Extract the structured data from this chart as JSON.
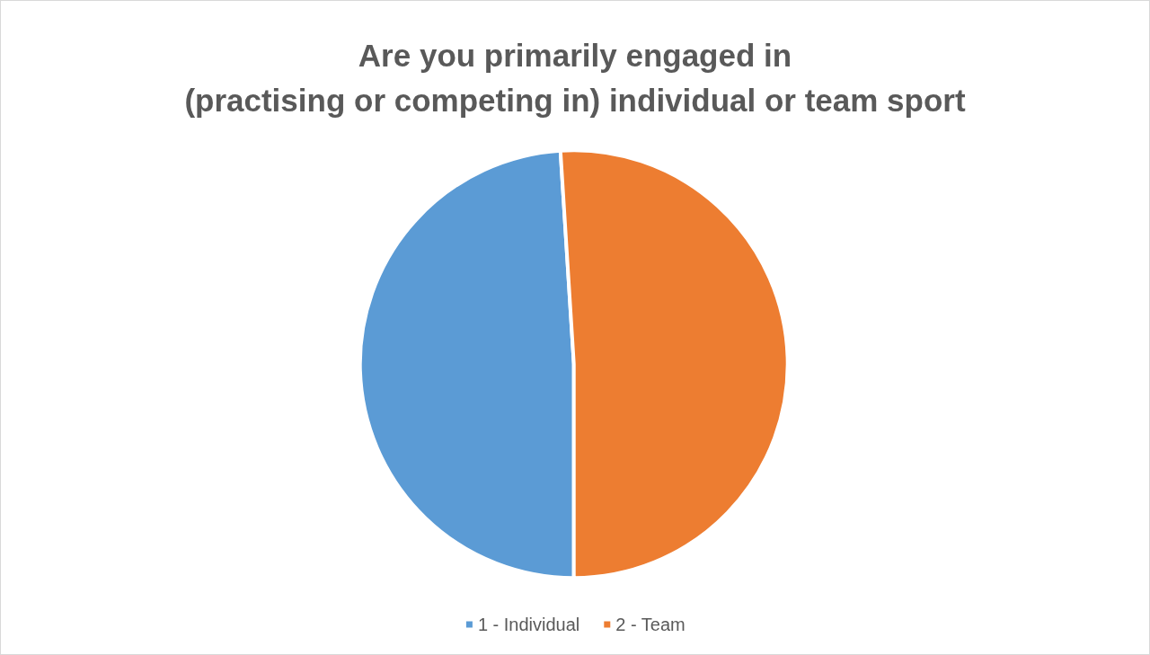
{
  "chart_data": {
    "type": "pie",
    "title": "Are you primarily engaged in\n(practising or competing in) individual or team sport",
    "categories": [
      "1 - Individual",
      "2 - Team"
    ],
    "values": [
      49,
      51
    ],
    "colors": [
      "#5b9bd5",
      "#ed7d31"
    ],
    "legend": "bottom"
  }
}
